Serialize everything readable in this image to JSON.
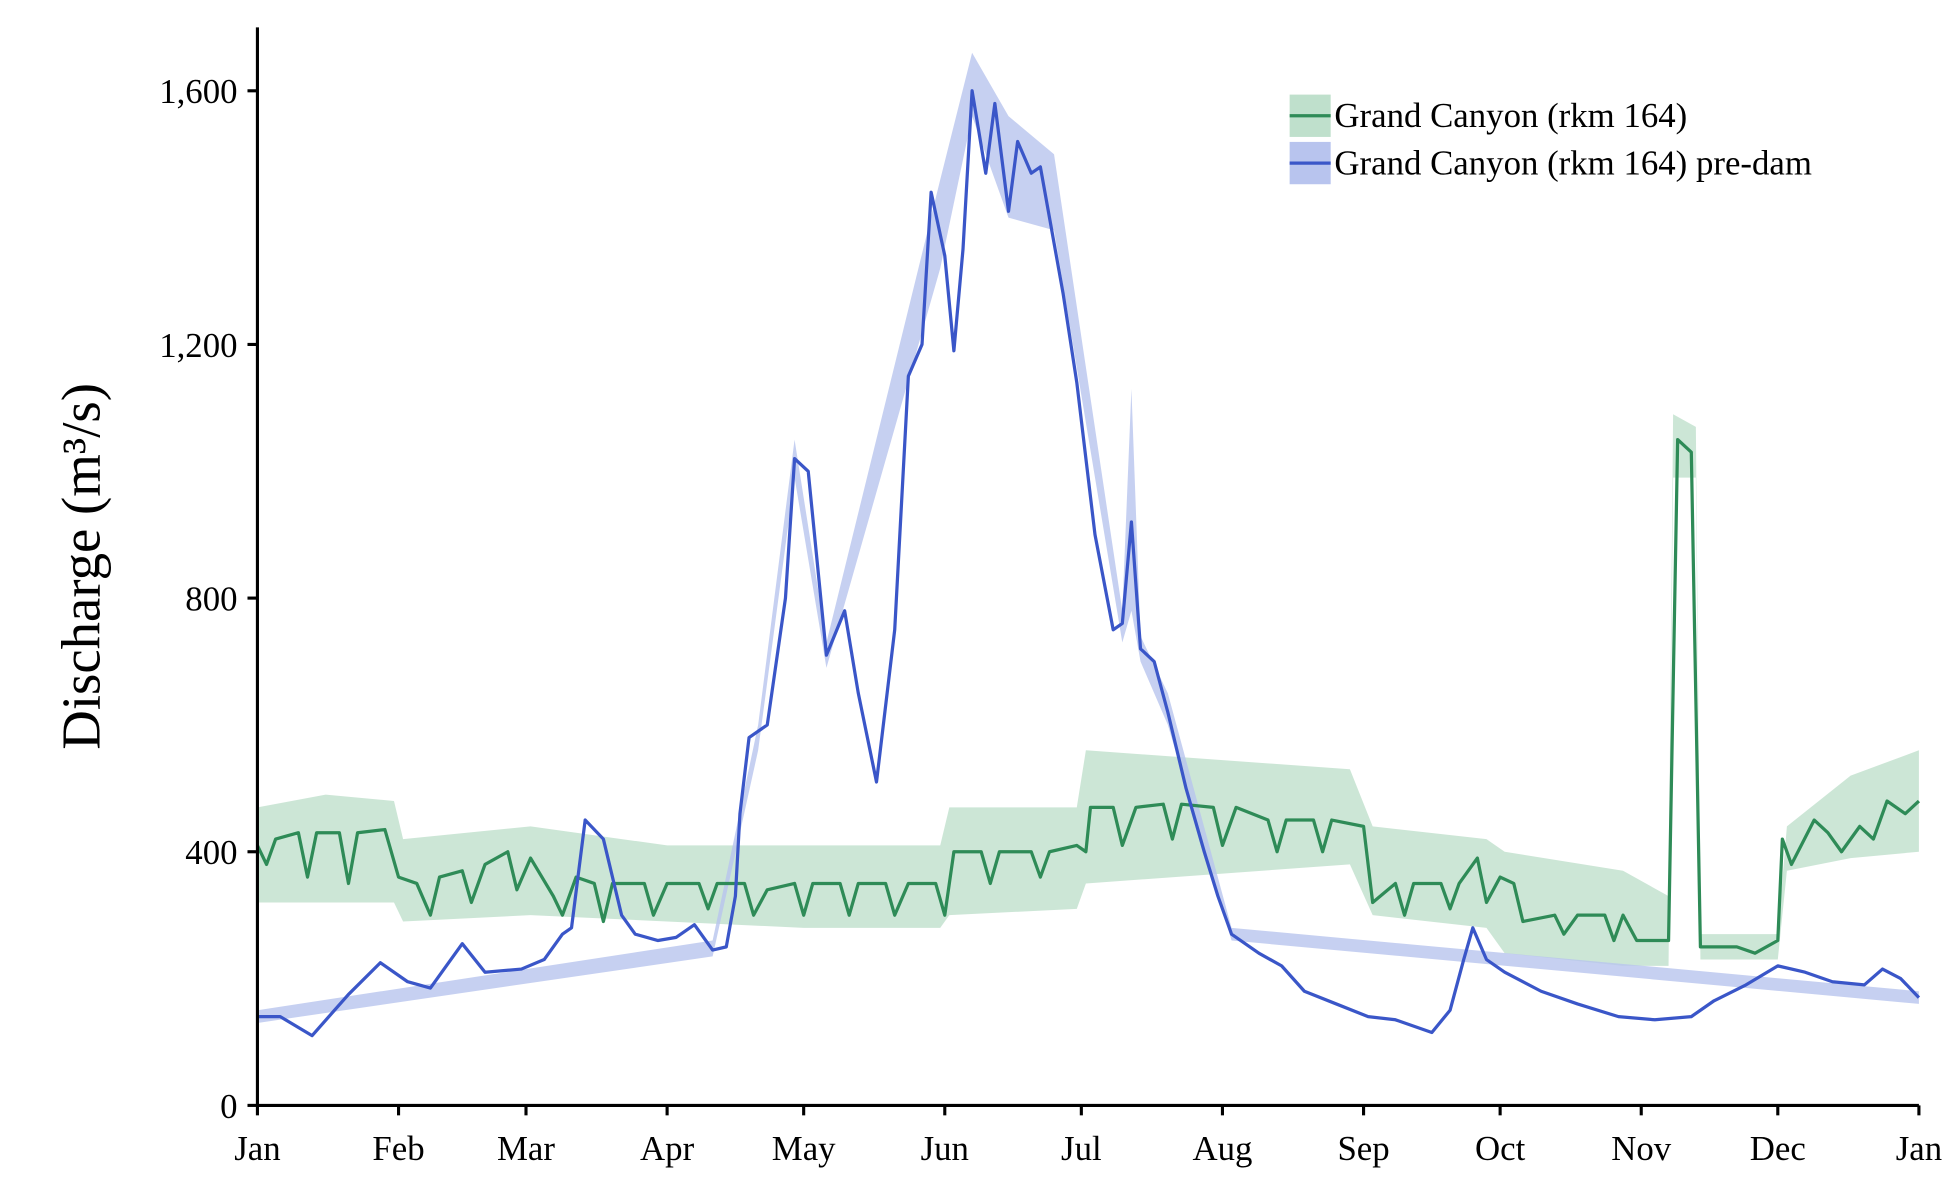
{
  "chart_data": {
    "type": "line",
    "y_label": "Discharge  (m³/s)",
    "xlim": [
      0,
      365
    ],
    "ylim": [
      0,
      1700
    ],
    "xticks": [
      {
        "value": 0,
        "label": "Jan"
      },
      {
        "value": 31,
        "label": "Feb"
      },
      {
        "value": 59,
        "label": "Mar"
      },
      {
        "value": 90,
        "label": "Apr"
      },
      {
        "value": 120,
        "label": "May"
      },
      {
        "value": 151,
        "label": "Jun"
      },
      {
        "value": 181,
        "label": "Jul"
      },
      {
        "value": 212,
        "label": "Aug"
      },
      {
        "value": 243,
        "label": "Sep"
      },
      {
        "value": 273,
        "label": "Oct"
      },
      {
        "value": 304,
        "label": "Nov"
      },
      {
        "value": 334,
        "label": "Dec"
      },
      {
        "value": 365,
        "label": "Jan"
      }
    ],
    "yticks": [
      0,
      400,
      800,
      {
        "value": 1200,
        "label": "1,200"
      },
      {
        "value": 1600,
        "label": "1,600"
      }
    ],
    "legend": "top-right",
    "series": [
      {
        "name": "Grand Canyon (rkm 164)",
        "color": "#2e8b57",
        "band_color": "#bfe0cc",
        "x": [
          0,
          2,
          4,
          9,
          11,
          13,
          18,
          20,
          22,
          28,
          31,
          35,
          38,
          40,
          45,
          47,
          50,
          55,
          57,
          60,
          65,
          67,
          70,
          74,
          76,
          78,
          85,
          87,
          90,
          97,
          99,
          101,
          107,
          109,
          112,
          118,
          120,
          122,
          128,
          130,
          132,
          138,
          140,
          143,
          149,
          151,
          153,
          159,
          161,
          163,
          170,
          172,
          174,
          180,
          182,
          183,
          188,
          190,
          193,
          199,
          201,
          203,
          210,
          212,
          215,
          222,
          224,
          226,
          232,
          234,
          236,
          243,
          245,
          250,
          252,
          254,
          260,
          262,
          264,
          268,
          270,
          273,
          276,
          278,
          285,
          287,
          290,
          296,
          298,
          300,
          303,
          310,
          312,
          315,
          317,
          325,
          329,
          334,
          335,
          337,
          342,
          345,
          348,
          352,
          355,
          358,
          362,
          365
        ],
        "values": [
          410,
          380,
          420,
          430,
          360,
          430,
          430,
          350,
          430,
          435,
          360,
          350,
          300,
          360,
          370,
          320,
          380,
          400,
          340,
          390,
          330,
          300,
          360,
          350,
          290,
          350,
          350,
          300,
          350,
          350,
          310,
          350,
          350,
          300,
          340,
          350,
          300,
          350,
          350,
          300,
          350,
          350,
          300,
          350,
          350,
          300,
          400,
          400,
          350,
          400,
          400,
          360,
          400,
          410,
          400,
          470,
          470,
          410,
          470,
          475,
          420,
          475,
          470,
          410,
          470,
          450,
          400,
          450,
          450,
          400,
          450,
          440,
          320,
          350,
          300,
          350,
          350,
          310,
          350,
          390,
          320,
          360,
          350,
          290,
          300,
          270,
          300,
          300,
          260,
          300,
          260,
          260,
          1050,
          1030,
          250,
          250,
          240,
          260,
          420,
          380,
          450,
          430,
          400,
          440,
          420,
          480,
          460,
          480
        ],
        "band": {
          "x": [
            0,
            15,
            30,
            32,
            60,
            90,
            120,
            150,
            152,
            180,
            182,
            240,
            245,
            270,
            274,
            300,
            310,
            311,
            316,
            317,
            334,
            336,
            350,
            365
          ],
          "lower": [
            320,
            320,
            320,
            290,
            300,
            290,
            280,
            280,
            300,
            310,
            350,
            380,
            300,
            280,
            240,
            220,
            220,
            990,
            990,
            230,
            230,
            370,
            390,
            400
          ],
          "upper": [
            470,
            490,
            480,
            420,
            440,
            410,
            410,
            410,
            470,
            470,
            560,
            530,
            440,
            420,
            400,
            370,
            330,
            1090,
            1070,
            270,
            270,
            440,
            520,
            560
          ]
        }
      },
      {
        "name": "Grand Canyon (rkm 164) pre-dam",
        "color": "#3a56c8",
        "band_color": "#b8c4ee",
        "x": [
          0,
          5,
          12,
          20,
          27,
          33,
          38,
          45,
          50,
          58,
          63,
          67,
          69,
          72,
          76,
          80,
          83,
          88,
          92,
          96,
          100,
          103,
          105,
          106,
          108,
          112,
          116,
          118,
          121,
          125,
          129,
          132,
          136,
          140,
          143,
          146,
          148,
          151,
          153,
          155,
          157,
          160,
          162,
          165,
          167,
          170,
          172,
          177,
          180,
          184,
          188,
          190,
          192,
          194,
          197,
          200,
          204,
          208,
          211,
          214,
          220,
          225,
          230,
          237,
          244,
          250,
          258,
          262,
          265,
          267,
          270,
          274,
          282,
          290,
          299,
          307,
          315,
          320,
          327,
          334,
          340,
          346,
          353,
          357,
          361,
          365
        ],
        "values": [
          140,
          140,
          110,
          175,
          225,
          195,
          185,
          255,
          210,
          215,
          230,
          270,
          280,
          450,
          420,
          300,
          270,
          260,
          265,
          285,
          245,
          250,
          330,
          460,
          580,
          600,
          800,
          1020,
          1000,
          710,
          780,
          650,
          510,
          750,
          1150,
          1200,
          1440,
          1340,
          1190,
          1350,
          1600,
          1470,
          1580,
          1410,
          1520,
          1470,
          1480,
          1280,
          1140,
          900,
          750,
          760,
          920,
          720,
          700,
          620,
          500,
          400,
          330,
          270,
          240,
          220,
          180,
          160,
          140,
          135,
          115,
          150,
          230,
          280,
          230,
          210,
          180,
          160,
          140,
          135,
          140,
          165,
          190,
          220,
          210,
          195,
          190,
          215,
          200,
          170
        ],
        "band": {
          "x": [
            0,
            100,
            110,
            118,
            125,
            150,
            157,
            165,
            175,
            190,
            192,
            194,
            200,
            214,
            365
          ],
          "lower": [
            130,
            235,
            560,
            990,
            690,
            1320,
            1560,
            1400,
            1380,
            730,
            780,
            700,
            600,
            260,
            160
          ],
          "upper": [
            150,
            260,
            600,
            1050,
            730,
            1460,
            1660,
            1560,
            1500,
            780,
            1130,
            740,
            650,
            280,
            180
          ]
        }
      }
    ]
  }
}
